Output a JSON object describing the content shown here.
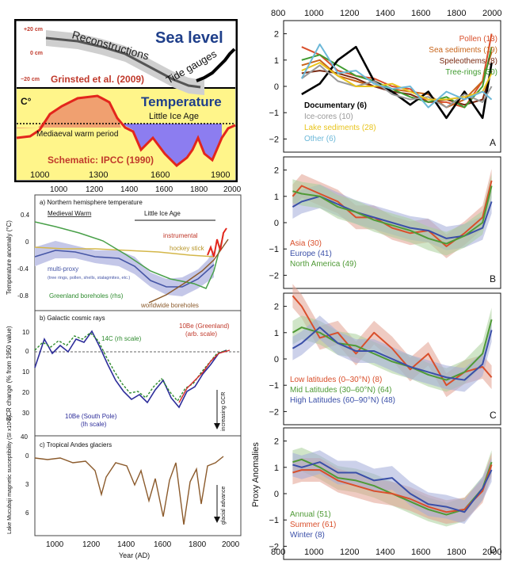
{
  "left_top": {
    "sea_title": "Sea level",
    "recon_label": "Reconstructions",
    "tide_label": "Tide gauges",
    "grinsted": "Grinsted et al. (2009)",
    "y_plus20": "+20 cm",
    "y_0": "0 cm",
    "y_minus20": "−20 cm",
    "c_label": "C°",
    "temp_title": "Temperature",
    "lia": "Little Ice Age",
    "mwp": "Mediaeval warm period",
    "ipcc": "Schematic: IPCC (1990)",
    "x_ticks": [
      "1000",
      "1300",
      "1600",
      "1900"
    ]
  },
  "left_mid": {
    "x_ticks_top": [
      "1000",
      "1200",
      "1400",
      "1600",
      "1800",
      "2000"
    ],
    "x_ticks_bottom": [
      "1000",
      "1200",
      "1400",
      "1600",
      "1800",
      "2000"
    ],
    "xlabel": "Year (AD)",
    "a": {
      "title": "a) Northern hemisphere temperature",
      "ylabel": "Temperature anomaly (°C)",
      "yticks": [
        "0.4",
        "0",
        "-0.4",
        "-0.8"
      ],
      "medieval": "Medieval Warm",
      "lia": "Little Ice Age",
      "instrumental": "instrumental",
      "hockey": "hockey stick",
      "multiproxy": "multi-proxy",
      "multiproxy_sub": "(tree rings, pollen, shells, stalagmites, etc.)",
      "greenland": "Greenland boreholes (rhs)",
      "worldwide": "worldwide boreholes"
    },
    "b": {
      "title": "b) Galactic cosmic rays",
      "ylabel": "GCR change (% from 1950 value)",
      "yticks": [
        "10",
        "0",
        "10",
        "20",
        "30"
      ],
      "c14": "14C (rh scale)",
      "be_greenland": "10Be (Greenland)",
      "arb": "(arb. scale)",
      "be_south": "10Be (South Pole)",
      "lh": "(lh scale)",
      "increasing": "increasing GCR"
    },
    "c": {
      "title": "c) Tropical Andes glaciers",
      "ylabel": "Lake Mucubaji magnetic susceptibility (SI x10-6)",
      "yticks": [
        "40",
        "0",
        "3",
        "6"
      ],
      "glacial": "glacial advance"
    }
  },
  "right": {
    "x_ticks": [
      "800",
      "1000",
      "1200",
      "1400",
      "1600",
      "1800",
      "2000"
    ],
    "yticks": [
      "2",
      "1",
      "0",
      "−1",
      "−2"
    ],
    "ylabel": "Proxy Anomalies",
    "panel_a": {
      "letter": "A",
      "legend_right": [
        {
          "label": "Pollen (13)",
          "color": "#d94f2b"
        },
        {
          "label": "Sea sediments (19)",
          "color": "#c8651b"
        },
        {
          "label": "Speleothems (8)",
          "color": "#7a2a12"
        },
        {
          "label": "Tree-rings (30)",
          "color": "#3f9b2f"
        }
      ],
      "legend_left": [
        {
          "label": "Documentary (6)",
          "color": "#000000"
        },
        {
          "label": "Ice-cores (10)",
          "color": "#999999"
        },
        {
          "label": "Lake sediments (28)",
          "color": "#e8c41d"
        },
        {
          "label": "Other (6)",
          "color": "#6cb8d8"
        }
      ]
    },
    "panel_b": {
      "letter": "B",
      "legend": [
        {
          "label": "Asia (30)",
          "color": "#d94f2b"
        },
        {
          "label": "Europe (41)",
          "color": "#3a4fa8"
        },
        {
          "label": "North America (49)",
          "color": "#4f9a36"
        }
      ]
    },
    "panel_c": {
      "letter": "C",
      "legend": [
        {
          "label": "Low latitudes (0–30°N) (8)",
          "color": "#d94f2b"
        },
        {
          "label": "Mid Latitudes (30–60°N) (64)",
          "color": "#4f9a36"
        },
        {
          "label": "High Latitudes (60–90°N) (48)",
          "color": "#3a4fa8"
        }
      ]
    },
    "panel_d": {
      "letter": "D",
      "legend": [
        {
          "label": "Annual (51)",
          "color": "#4f9a36"
        },
        {
          "label": "Summer (61)",
          "color": "#d94f2b"
        },
        {
          "label": "Winter (8)",
          "color": "#3a4fa8"
        }
      ]
    }
  },
  "chart_data": [
    {
      "type": "line",
      "title": "Sea level",
      "series": [
        {
          "name": "Reconstructions",
          "x": [
            1000,
            1100,
            1200,
            1300,
            1400,
            1500,
            1600,
            1700,
            1800,
            1850
          ],
          "values": [
            18,
            17,
            14,
            10,
            6,
            0,
            -8,
            -14,
            -18,
            -20
          ]
        },
        {
          "name": "Tide gauges",
          "x": [
            1850,
            1900,
            1950,
            2000
          ],
          "values": [
            -18,
            -12,
            -5,
            5
          ]
        }
      ]
    },
    {
      "type": "area",
      "title": "Temperature",
      "x": [
        1000,
        1100,
        1200,
        1300,
        1400,
        1450,
        1500,
        1600,
        1650,
        1700,
        1800,
        1900
      ],
      "values": [
        0.05,
        0.3,
        0.8,
        0.6,
        -0.05,
        -0.3,
        -0.6,
        -0.5,
        -0.8,
        -0.3,
        -0.6,
        0.05
      ]
    },
    {
      "type": "line",
      "title": "a) Northern hemisphere temperature",
      "ylabel": "Temperature anomaly (°C)",
      "ylim": [
        -0.9,
        0.4
      ],
      "series": [
        {
          "name": "multi-proxy",
          "x": [
            900,
            1000,
            1100,
            1200,
            1300,
            1400,
            1500,
            1600,
            1700,
            1800,
            1900
          ],
          "values": [
            -0.3,
            -0.25,
            -0.2,
            -0.2,
            -0.3,
            -0.35,
            -0.45,
            -0.55,
            -0.6,
            -0.45,
            -0.2
          ]
        },
        {
          "name": "hockey stick",
          "x": [
            1000,
            1200,
            1400,
            1600,
            1800,
            1900
          ],
          "values": [
            -0.1,
            -0.12,
            -0.15,
            -0.2,
            -0.25,
            -0.15
          ]
        },
        {
          "name": "instrumental",
          "x": [
            1860,
            1900,
            1950,
            2000
          ],
          "values": [
            -0.4,
            -0.3,
            -0.1,
            0.2
          ]
        },
        {
          "name": "Greenland boreholes (rhs)",
          "x": [
            900,
            1000,
            1100,
            1200,
            1300,
            1400,
            1500,
            1600,
            1700,
            1800,
            1900
          ],
          "values": [
            0.2,
            0.1,
            -0.05,
            -0.15,
            -0.25,
            -0.4,
            -0.55,
            -0.55,
            -0.6,
            -0.75,
            0.1
          ]
        },
        {
          "name": "worldwide boreholes",
          "x": [
            1500,
            1600,
            1700,
            1800,
            1900,
            2000
          ],
          "values": [
            -0.85,
            -0.8,
            -0.7,
            -0.55,
            -0.3,
            0.1
          ]
        }
      ]
    },
    {
      "type": "line",
      "title": "b) Galactic cosmic rays",
      "ylabel": "GCR change (% from 1950 value)",
      "ylim": [
        -10,
        40
      ],
      "series": [
        {
          "name": "10Be (South Pole)",
          "x": [
            900,
            950,
            1000,
            1050,
            1100,
            1150,
            1200,
            1250,
            1300,
            1350,
            1400,
            1450,
            1500,
            1550,
            1600,
            1650,
            1700,
            1750,
            1800,
            1850,
            1900,
            1950
          ],
          "values": [
            5,
            28,
            5,
            8,
            0,
            10,
            -5,
            15,
            12,
            28,
            20,
            22,
            25,
            30,
            5,
            12,
            28,
            14,
            25,
            15,
            5,
            0
          ]
        },
        {
          "name": "14C (rh scale)",
          "x": [
            900,
            950,
            1000,
            1050,
            1100,
            1150,
            1200,
            1250,
            1300,
            1350,
            1400,
            1450,
            1500,
            1550,
            1600,
            1650,
            1700,
            1750,
            1800,
            1850,
            1900,
            1950
          ],
          "values": [
            0,
            10,
            2,
            8,
            -3,
            5,
            -6,
            12,
            10,
            25,
            18,
            20,
            24,
            28,
            8,
            15,
            26,
            18,
            22,
            16,
            8,
            0
          ]
        },
        {
          "name": "10Be (Greenland)",
          "x": [
            1700,
            1750,
            1800,
            1850,
            1900,
            1950,
            2000
          ],
          "values": [
            30,
            20,
            25,
            12,
            10,
            2,
            -2
          ]
        }
      ]
    },
    {
      "type": "line",
      "title": "c) Tropical Andes glaciers",
      "ylabel": "Lake Mucubaji magnetic susceptibility (SI x10-6)",
      "series": [
        {
          "name": "Lake Mucubaji",
          "x": [
            900,
            1000,
            1100,
            1200,
            1250,
            1300,
            1350,
            1400,
            1450,
            1500,
            1550,
            1600,
            1650,
            1700,
            1750,
            1800,
            1850,
            1900,
            1950
          ],
          "values": [
            0.2,
            0.3,
            0.5,
            0.5,
            1.5,
            4.5,
            1,
            0.5,
            3,
            1,
            5,
            2,
            6.5,
            2,
            2.5,
            4,
            2,
            2,
            0.5
          ]
        }
      ]
    },
    {
      "type": "line",
      "title": "A",
      "ylim": [
        -2.5,
        2.5
      ],
      "x": [
        900,
        1000,
        1100,
        1200,
        1300,
        1400,
        1500,
        1600,
        1700,
        1800,
        1900,
        1950
      ],
      "series": [
        {
          "name": "Pollen (13)",
          "values": [
            1.5,
            1.2,
            0.6,
            0.4,
            0.3,
            0,
            -0.1,
            -0.6,
            -0.6,
            -0.8,
            0.2,
            2.0
          ]
        },
        {
          "name": "Sea sediments (19)",
          "values": [
            0.8,
            1.0,
            0.4,
            0.2,
            0.0,
            -0.1,
            -0.2,
            -0.3,
            -0.8,
            -0.5,
            0.2,
            1.3
          ]
        },
        {
          "name": "Speleothems (8)",
          "values": [
            0.5,
            0.6,
            0.5,
            0.3,
            0.0,
            -0.2,
            -0.3,
            -0.6,
            -0.5,
            -0.7,
            -0.5,
            0.6
          ]
        },
        {
          "name": "Tree-rings (30)",
          "values": [
            1.0,
            1.2,
            0.8,
            0.4,
            0.2,
            -0.1,
            -0.4,
            -0.6,
            -0.4,
            -0.8,
            0.0,
            1.5
          ]
        },
        {
          "name": "Documentary (6)",
          "values": [
            -0.3,
            0.1,
            1.0,
            1.5,
            0.2,
            -0.2,
            -0.7,
            -0.2,
            -1.2,
            -0.2,
            -1.2,
            0.9
          ]
        },
        {
          "name": "Ice-cores (10)",
          "values": [
            0.3,
            0.8,
            0.2,
            0.0,
            0.2,
            -0.3,
            -0.5,
            -0.4,
            -0.8,
            -0.3,
            -0.6,
            0.0
          ]
        },
        {
          "name": "Lake sediments (28)",
          "values": [
            0.6,
            0.9,
            0.4,
            0.0,
            0.0,
            0.1,
            -0.2,
            -0.5,
            -0.5,
            -0.4,
            -0.2,
            0.5
          ]
        },
        {
          "name": "Other (6)",
          "values": [
            0.3,
            1.6,
            0.5,
            0.6,
            0.1,
            -0.1,
            0.0,
            -0.8,
            -0.2,
            -0.5,
            -0.2,
            -0.5
          ]
        }
      ]
    },
    {
      "type": "line",
      "title": "B",
      "ylim": [
        -2.5,
        2.5
      ],
      "x": [
        850,
        900,
        1000,
        1100,
        1200,
        1300,
        1400,
        1500,
        1600,
        1700,
        1800,
        1900,
        1950
      ],
      "series": [
        {
          "name": "Asia (30)",
          "values": [
            1.0,
            1.4,
            1.1,
            0.8,
            0.2,
            0.2,
            -0.2,
            -0.4,
            -0.3,
            -0.9,
            -0.4,
            0.2,
            1.6
          ]
        },
        {
          "name": "Europe (41)",
          "values": [
            0.6,
            0.8,
            1.0,
            0.7,
            0.4,
            0.2,
            0.0,
            -0.2,
            -0.3,
            -0.6,
            -0.5,
            -0.2,
            0.8
          ]
        },
        {
          "name": "North America (49)",
          "values": [
            1.2,
            1.1,
            1.0,
            0.6,
            0.4,
            0.1,
            -0.1,
            -0.3,
            -0.6,
            -0.8,
            -0.5,
            0.0,
            1.4
          ]
        }
      ]
    },
    {
      "type": "line",
      "title": "C",
      "ylim": [
        -2.5,
        2.5
      ],
      "x": [
        850,
        900,
        1000,
        1100,
        1200,
        1300,
        1400,
        1500,
        1600,
        1700,
        1800,
        1900,
        1950
      ],
      "series": [
        {
          "name": "Low latitudes (0–30°N) (8)",
          "values": [
            2.4,
            2.0,
            0.8,
            1.0,
            0.2,
            1.0,
            0.4,
            -0.4,
            0.2,
            -1.0,
            -0.5,
            -0.3,
            -0.7
          ]
        },
        {
          "name": "Mid Latitudes (30–60°N) (64)",
          "values": [
            1.0,
            1.2,
            1.0,
            0.6,
            0.5,
            0.2,
            -0.1,
            -0.3,
            -0.6,
            -0.8,
            -0.5,
            0.2,
            1.5
          ]
        },
        {
          "name": "High Latitudes (60–90°N) (48)",
          "values": [
            0.4,
            0.6,
            1.2,
            0.6,
            0.3,
            0.3,
            0.0,
            -0.3,
            -0.5,
            -0.7,
            -0.8,
            -0.2,
            1.1
          ]
        }
      ]
    },
    {
      "type": "line",
      "title": "D",
      "ylim": [
        -2.5,
        2.5
      ],
      "x": [
        850,
        900,
        1000,
        1100,
        1200,
        1300,
        1400,
        1500,
        1600,
        1700,
        1800,
        1900,
        1950
      ],
      "series": [
        {
          "name": "Annual (51)",
          "values": [
            1.2,
            1.3,
            1.0,
            0.6,
            0.5,
            0.3,
            0.0,
            -0.3,
            -0.6,
            -0.8,
            -0.6,
            0.2,
            1.2
          ]
        },
        {
          "name": "Summer (61)",
          "values": [
            0.8,
            0.9,
            0.9,
            0.5,
            0.3,
            0.1,
            0.0,
            -0.2,
            -0.5,
            -0.7,
            -0.6,
            0.1,
            1.1
          ]
        },
        {
          "name": "Winter (8)",
          "values": [
            1.1,
            1.0,
            1.2,
            0.8,
            0.8,
            0.5,
            0.6,
            0.0,
            -0.4,
            -0.5,
            -0.7,
            0.2,
            0.9
          ]
        }
      ]
    }
  ]
}
